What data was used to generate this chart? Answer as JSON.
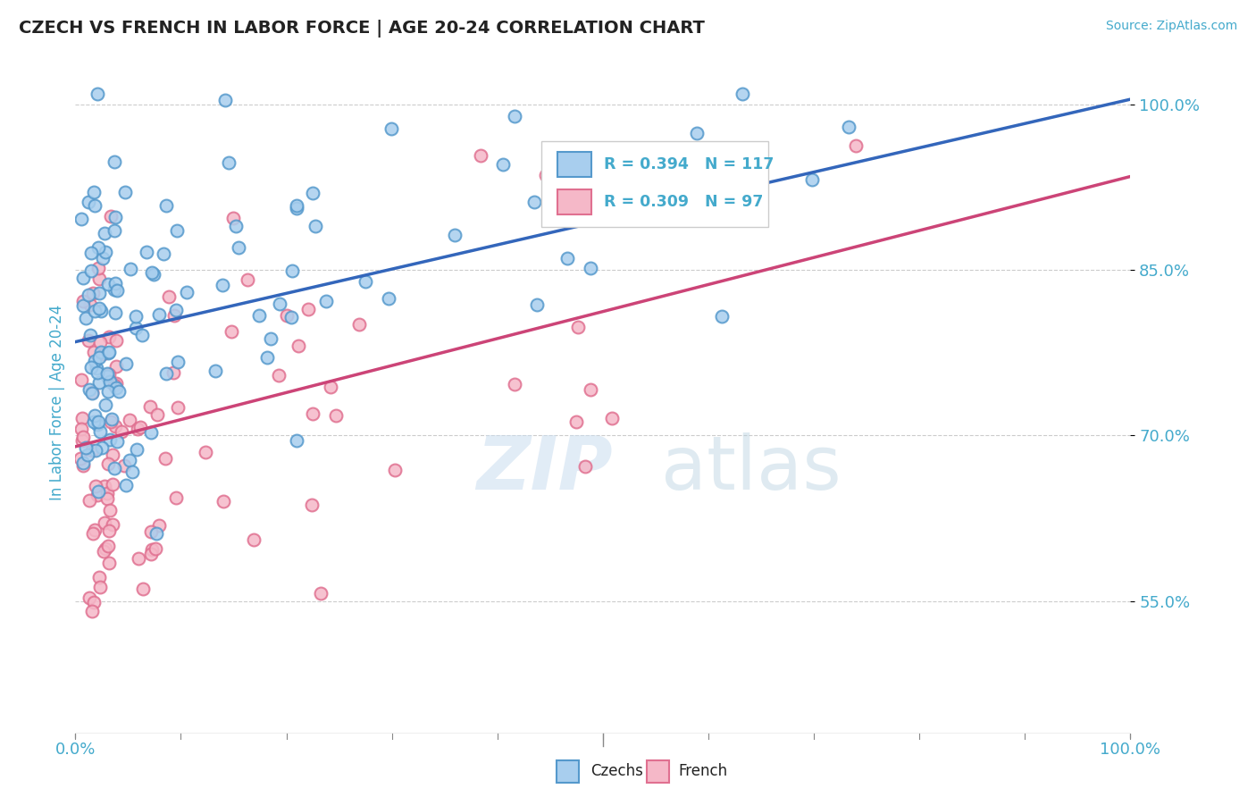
{
  "title": "CZECH VS FRENCH IN LABOR FORCE | AGE 20-24 CORRELATION CHART",
  "source": "Source: ZipAtlas.com",
  "ylabel": "In Labor Force | Age 20-24",
  "xlim": [
    0.0,
    1.0
  ],
  "ylim": [
    0.43,
    1.03
  ],
  "yticks": [
    0.55,
    0.7,
    0.85,
    1.0
  ],
  "ytick_labels": [
    "55.0%",
    "70.0%",
    "85.0%",
    "100.0%"
  ],
  "xtick_labels_left": "0.0%",
  "xtick_labels_right": "100.0%",
  "legend_r_czech": "R = 0.394",
  "legend_n_czech": "N = 117",
  "legend_r_french": "R = 0.309",
  "legend_n_french": "N = 97",
  "color_czech_face": "#A8CEEE",
  "color_czech_edge": "#5599CC",
  "color_french_face": "#F5B8C8",
  "color_french_edge": "#E07090",
  "color_line_czech": "#3366BB",
  "color_line_french": "#CC4477",
  "color_axis_text": "#44AACC",
  "color_title": "#222222",
  "background_color": "#FFFFFF",
  "grid_color": "#CCCCCC",
  "marker_size": 100,
  "marker_linewidth": 1.5,
  "czech_line_x0": 0.0,
  "czech_line_y0": 0.785,
  "czech_line_x1": 1.0,
  "czech_line_y1": 1.005,
  "french_line_x0": 0.0,
  "french_line_y0": 0.69,
  "french_line_x1": 1.0,
  "french_line_y1": 0.935
}
